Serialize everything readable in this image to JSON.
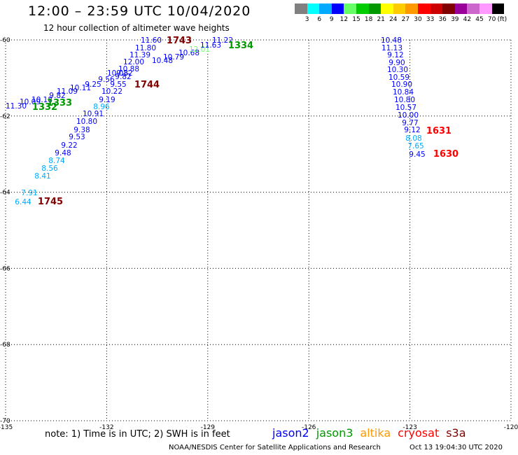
{
  "header": {
    "title": "12:00 – 23:59 UTC 10/04/2020",
    "subtitle": "12 hour collection of altimeter wave heights"
  },
  "colorbar": {
    "colors": [
      "#808080",
      "#00ffff",
      "#00aaff",
      "#0000ff",
      "#66ff66",
      "#00cc00",
      "#009900",
      "#ffff00",
      "#ffcc00",
      "#ff9900",
      "#ff0000",
      "#cc0000",
      "#800000",
      "#990099",
      "#cc66cc",
      "#ff99ff",
      "#000000"
    ],
    "labels": [
      "3",
      "6",
      "9",
      "12",
      "15",
      "18",
      "21",
      "24",
      "27",
      "30",
      "33",
      "36",
      "39",
      "42",
      "45",
      "70",
      "(ft)"
    ]
  },
  "chart_data": {
    "type": "scatter",
    "x_axis": {
      "range": [
        -135,
        -120
      ],
      "ticks": [
        "-135",
        "-132",
        "-129",
        "-126",
        "-123",
        "-120"
      ]
    },
    "y_axis": {
      "range": [
        -70,
        -60
      ],
      "ticks": [
        "-60",
        "-62",
        "-64",
        "-66",
        "-68",
        "-70"
      ]
    },
    "grid": true,
    "tracks": [
      {
        "time_label": "1743",
        "label_color": "#800000"
      },
      {
        "time_label": "1744",
        "label_color": "#800000"
      },
      {
        "time_label": "1745",
        "label_color": "#800000"
      },
      {
        "time_label": "1334",
        "label_color": "#009900"
      },
      {
        "time_label": "1333",
        "label_color": "#009900"
      },
      {
        "time_label": "1332",
        "label_color": "#009900"
      },
      {
        "time_label": "1631",
        "label_color": "#ff0000"
      },
      {
        "time_label": "1630",
        "label_color": "#ff0000"
      }
    ],
    "points": [
      {
        "v": "11.60",
        "c": "#0000ff"
      },
      {
        "v": "11.80",
        "c": "#0000ff"
      },
      {
        "v": "11.39",
        "c": "#0000ff"
      },
      {
        "v": "12.00",
        "c": "#0000ff"
      },
      {
        "v": "10.88",
        "c": "#0000ff"
      },
      {
        "v": "10.03",
        "c": "#0000ff"
      },
      {
        "v": "9.82",
        "c": "#0000ff"
      },
      {
        "v": "9.82",
        "c": "#0000ff"
      },
      {
        "v": "9.56",
        "c": "#0000ff"
      },
      {
        "v": "9.55",
        "c": "#0000ff"
      },
      {
        "v": "10.22",
        "c": "#0000ff"
      },
      {
        "v": "9.19",
        "c": "#0000ff"
      },
      {
        "v": "8.96",
        "c": "#00aaff"
      },
      {
        "v": "10.91",
        "c": "#0000ff"
      },
      {
        "v": "10.80",
        "c": "#0000ff"
      },
      {
        "v": "9.38",
        "c": "#0000ff"
      },
      {
        "v": "9.53",
        "c": "#0000ff"
      },
      {
        "v": "9.22",
        "c": "#0000ff"
      },
      {
        "v": "9.48",
        "c": "#0000ff"
      },
      {
        "v": "8.74",
        "c": "#00aaff"
      },
      {
        "v": "8.56",
        "c": "#00aaff"
      },
      {
        "v": "8.41",
        "c": "#00aaff"
      },
      {
        "v": "7.91",
        "c": "#00aaff"
      },
      {
        "v": "6.44",
        "c": "#00aaff"
      },
      {
        "v": "10.48",
        "c": "#0000ff"
      },
      {
        "v": "10.79",
        "c": "#0000ff"
      },
      {
        "v": "10.68",
        "c": "#0000ff"
      },
      {
        "v": "12.01",
        "c": "#66ff66"
      },
      {
        "v": "11.63",
        "c": "#0000ff"
      },
      {
        "v": "11.22",
        "c": "#0000ff"
      },
      {
        "v": "9.25",
        "c": "#0000ff"
      },
      {
        "v": "10.11",
        "c": "#0000ff"
      },
      {
        "v": "11.09",
        "c": "#0000ff"
      },
      {
        "v": "9.82",
        "c": "#0000ff"
      },
      {
        "v": "10.18",
        "c": "#0000ff"
      },
      {
        "v": "10.09",
        "c": "#0000ff"
      },
      {
        "v": "11.30",
        "c": "#0000ff"
      },
      {
        "v": "10.48",
        "c": "#0000ff"
      },
      {
        "v": "11.13",
        "c": "#0000ff"
      },
      {
        "v": "9.12",
        "c": "#0000ff"
      },
      {
        "v": "9.90",
        "c": "#0000ff"
      },
      {
        "v": "10.30",
        "c": "#0000ff"
      },
      {
        "v": "10.59",
        "c": "#0000ff"
      },
      {
        "v": "10.90",
        "c": "#0000ff"
      },
      {
        "v": "10.84",
        "c": "#0000ff"
      },
      {
        "v": "10.80",
        "c": "#0000ff"
      },
      {
        "v": "10.57",
        "c": "#0000ff"
      },
      {
        "v": "10.00",
        "c": "#0000ff"
      },
      {
        "v": "9.77",
        "c": "#0000ff"
      },
      {
        "v": "9.12",
        "c": "#0000ff"
      },
      {
        "v": "8.08",
        "c": "#00aaff"
      },
      {
        "v": "7.65",
        "c": "#00aaff"
      },
      {
        "v": "9.45",
        "c": "#0000ff"
      }
    ]
  },
  "note": "note: 1) Time is in UTC; 2) SWH is in feet",
  "satellites": [
    {
      "name": "jason2",
      "color": "#0000ff"
    },
    {
      "name": "jason3",
      "color": "#009900"
    },
    {
      "name": "altika",
      "color": "#ff9900"
    },
    {
      "name": "cryosat",
      "color": "#ff0000"
    },
    {
      "name": "s3a",
      "color": "#800000"
    }
  ],
  "footer": {
    "org": "NOAA/NESDIS Center for Satellite Applications and Research",
    "timestamp": "Oct 13 19:04:30 UTC 2020"
  }
}
